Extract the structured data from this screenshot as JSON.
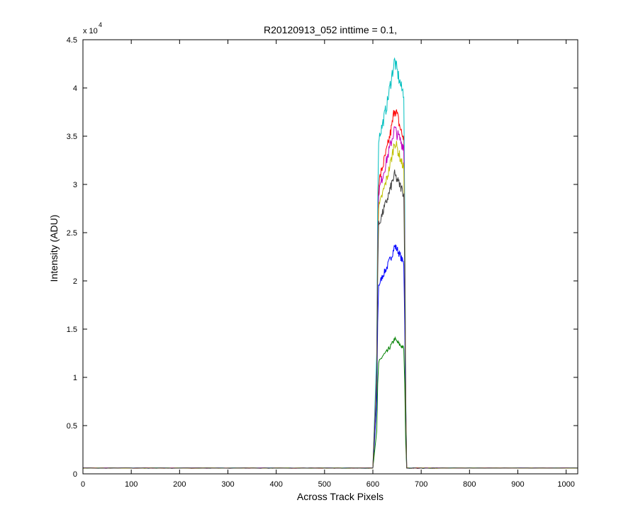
{
  "chart_data": {
    "type": "line",
    "title": "R20120913_052 inttime = 0.1,",
    "xlabel": "Across Track Pixels",
    "ylabel": "Intensity (ADU)",
    "y_multiplier_label": "x 10",
    "y_multiplier_exponent": "4",
    "xlim": [
      0,
      1024
    ],
    "ylim": [
      0,
      4.5
    ],
    "y_scale_factor": 10000,
    "xticks": [
      0,
      100,
      200,
      300,
      400,
      500,
      600,
      700,
      800,
      900,
      1000
    ],
    "yticks": [
      0,
      0.5,
      1,
      1.5,
      2,
      2.5,
      3,
      3.5,
      4,
      4.5
    ],
    "grid": false,
    "legend": "none",
    "profile_shape": {
      "baseline": 0.06,
      "rise_start_x": 607,
      "plateau_start_x": 612,
      "plateau_end_x": 664,
      "fall_end_x": 670
    },
    "series": [
      {
        "color": "#0000ff",
        "plateau_values": [
          [
            612,
            1.95
          ],
          [
            620,
            2.05
          ],
          [
            630,
            2.15
          ],
          [
            640,
            2.28
          ],
          [
            645,
            2.36
          ],
          [
            650,
            2.33
          ],
          [
            655,
            2.28
          ],
          [
            660,
            2.22
          ],
          [
            664,
            2.18
          ]
        ]
      },
      {
        "color": "#008000",
        "plateau_values": [
          [
            612,
            1.15
          ],
          [
            620,
            1.22
          ],
          [
            630,
            1.27
          ],
          [
            640,
            1.35
          ],
          [
            645,
            1.4
          ],
          [
            650,
            1.37
          ],
          [
            655,
            1.34
          ],
          [
            660,
            1.32
          ],
          [
            664,
            1.3
          ]
        ]
      },
      {
        "color": "#ff0000",
        "plateau_values": [
          [
            612,
            3.02
          ],
          [
            620,
            3.18
          ],
          [
            630,
            3.38
          ],
          [
            640,
            3.62
          ],
          [
            645,
            3.8
          ],
          [
            650,
            3.72
          ],
          [
            655,
            3.62
          ],
          [
            660,
            3.52
          ],
          [
            664,
            3.48
          ]
        ]
      },
      {
        "color": "#00bfbf",
        "plateau_values": [
          [
            612,
            3.48
          ],
          [
            620,
            3.62
          ],
          [
            630,
            3.85
          ],
          [
            640,
            4.15
          ],
          [
            645,
            4.28
          ],
          [
            650,
            4.18
          ],
          [
            655,
            4.08
          ],
          [
            660,
            3.98
          ],
          [
            664,
            3.95
          ]
        ]
      },
      {
        "color": "#bf00bf",
        "plateau_values": [
          [
            612,
            2.92
          ],
          [
            620,
            3.08
          ],
          [
            630,
            3.28
          ],
          [
            640,
            3.48
          ],
          [
            645,
            3.58
          ],
          [
            650,
            3.52
          ],
          [
            655,
            3.48
          ],
          [
            660,
            3.42
          ],
          [
            664,
            3.4
          ]
        ]
      },
      {
        "color": "#bfbf00",
        "plateau_values": [
          [
            612,
            2.75
          ],
          [
            620,
            2.9
          ],
          [
            630,
            3.08
          ],
          [
            640,
            3.3
          ],
          [
            645,
            3.45
          ],
          [
            650,
            3.38
          ],
          [
            655,
            3.3
          ],
          [
            660,
            3.22
          ],
          [
            664,
            3.18
          ]
        ]
      },
      {
        "color": "#404040",
        "plateau_values": [
          [
            612,
            2.58
          ],
          [
            620,
            2.7
          ],
          [
            630,
            2.85
          ],
          [
            640,
            3.02
          ],
          [
            645,
            3.1
          ],
          [
            650,
            3.05
          ],
          [
            655,
            3.0
          ],
          [
            660,
            2.95
          ],
          [
            664,
            2.9
          ]
        ]
      }
    ]
  }
}
